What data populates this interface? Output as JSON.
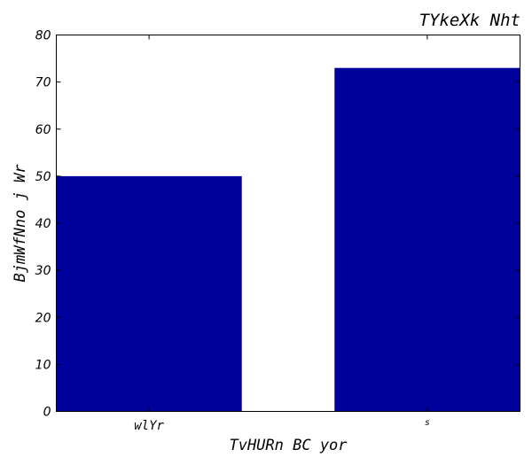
{
  "chart_data": {
    "type": "bar",
    "title": "TYkeXk  Nht",
    "xlabel": "TvHURn BC yor",
    "ylabel": "BjmWfNno j  Wr",
    "categories": [
      "wlYr",
      "s"
    ],
    "values": [
      50,
      73
    ],
    "ylim": [
      0,
      80
    ],
    "yticks": [
      "0",
      "10",
      "20",
      "30",
      "40",
      "50",
      "60",
      "70",
      "80"
    ],
    "bar_color": "#00009b",
    "grid": false
  }
}
